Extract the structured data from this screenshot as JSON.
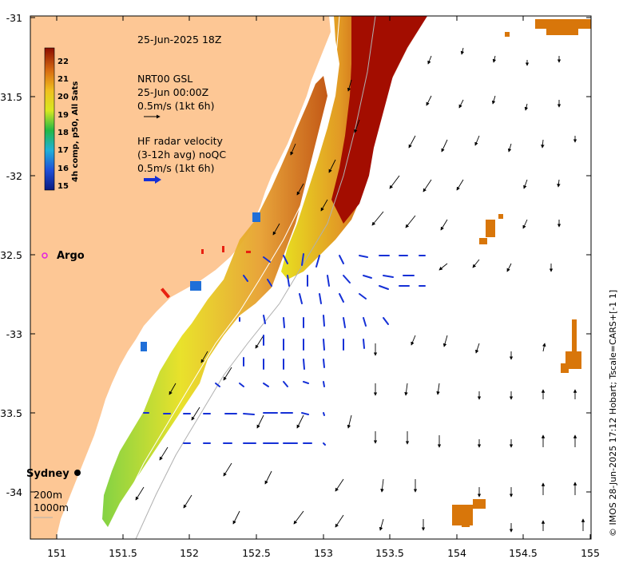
{
  "map": {
    "timestamp": "25-Jun-2025 18Z",
    "gsl_title": "NRT00 GSL",
    "gsl_time": "25-Jun 00:00Z",
    "gsl_scale": "0.5m/s (1kt 6h)",
    "radar_title": "HF radar velocity",
    "radar_avg": "(3-12h avg) noQC",
    "radar_scale": "0.5m/s (1kt 6h)",
    "argo_label": "Argo",
    "sydney_label": "Sydney",
    "isobath_200": "200m",
    "isobath_1000": "1000m",
    "credit": "© IMOS 28-Jun-2025 17:12 Hobart; Tscale=CARS+[-1 1]",
    "colorbar_label": "4h comp, p50, All Sats",
    "colorbar_ticks": [
      "22",
      "21",
      "20",
      "19",
      "18",
      "17",
      "16",
      "15"
    ],
    "colors": {
      "land": "#fdc795",
      "warm": "#a30d00",
      "radar_arrows": "#1530d6",
      "argo": "#e020e0"
    }
  },
  "axes": {
    "x_ticks": [
      "151",
      "151.5",
      "152",
      "152.5",
      "153",
      "153.5",
      "154",
      "154.5",
      "155"
    ],
    "y_ticks": [
      "-31",
      "-31.5",
      "-32",
      "-32.5",
      "-33",
      "-33.5",
      "-34"
    ],
    "x_range": [
      150.8,
      155
    ],
    "y_range": [
      -34.3,
      -31
    ]
  }
}
